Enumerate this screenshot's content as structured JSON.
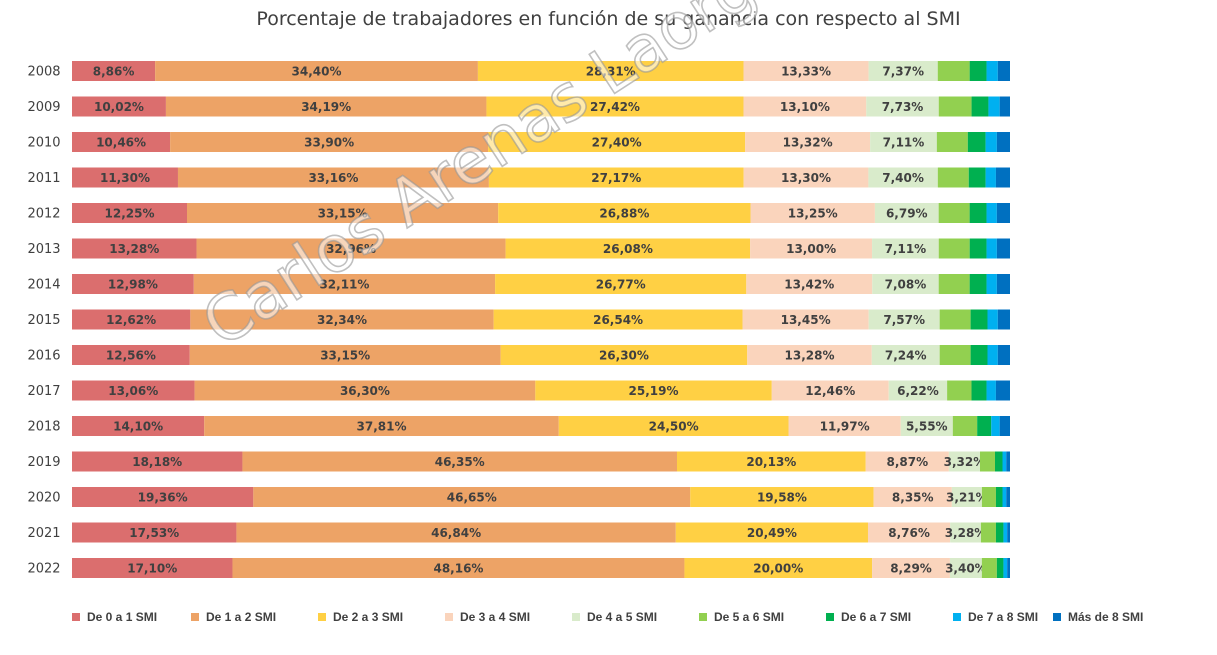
{
  "chart_data": {
    "type": "bar",
    "orientation": "horizontal",
    "stacked": "100%",
    "title": "Porcentaje de trabajadores en función de su ganancia con respecto al SMI",
    "categories": [
      "2008",
      "2009",
      "2010",
      "2011",
      "2012",
      "2013",
      "2014",
      "2015",
      "2016",
      "2017",
      "2018",
      "2019",
      "2020",
      "2021",
      "2022"
    ],
    "series": [
      {
        "name": "De 0 a 1 SMI",
        "color": "#DB6E6E",
        "values": [
          8.86,
          10.02,
          10.46,
          11.3,
          12.25,
          13.28,
          12.98,
          12.62,
          12.56,
          13.06,
          14.1,
          18.18,
          19.36,
          17.53,
          17.1
        ],
        "labels": [
          "8,86%",
          "10,02%",
          "10,46%",
          "11,30%",
          "12,25%",
          "13,28%",
          "12,98%",
          "12,62%",
          "12,56%",
          "13,06%",
          "14,10%",
          "18,18%",
          "19,36%",
          "17,53%",
          "17,10%"
        ]
      },
      {
        "name": "De 1 a 2 SMI",
        "color": "#EDA366",
        "values": [
          34.4,
          34.19,
          33.9,
          33.16,
          33.15,
          32.96,
          32.11,
          32.34,
          33.15,
          36.3,
          37.81,
          46.35,
          46.65,
          46.84,
          48.16
        ],
        "labels": [
          "34,40%",
          "34,19%",
          "33,90%",
          "33,16%",
          "33,15%",
          "32,96%",
          "32,11%",
          "32,34%",
          "33,15%",
          "36,30%",
          "37,81%",
          "46,35%",
          "46,65%",
          "46,84%",
          "48,16%"
        ]
      },
      {
        "name": "De 2 a 3 SMI",
        "color": "#FFD044",
        "values": [
          28.31,
          27.42,
          27.4,
          27.17,
          26.88,
          26.08,
          26.77,
          26.54,
          26.3,
          25.19,
          24.5,
          20.13,
          19.58,
          20.49,
          20.0
        ],
        "labels": [
          "28,31%",
          "27,42%",
          "27,40%",
          "27,17%",
          "26,88%",
          "26,08%",
          "26,77%",
          "26,54%",
          "26,30%",
          "25,19%",
          "24,50%",
          "20,13%",
          "19,58%",
          "20,49%",
          "20,00%"
        ]
      },
      {
        "name": "De 3 a 4 SMI",
        "color": "#FAD4BC",
        "values": [
          13.33,
          13.1,
          13.32,
          13.3,
          13.25,
          13.0,
          13.42,
          13.45,
          13.28,
          12.46,
          11.97,
          8.87,
          8.35,
          8.76,
          8.29
        ],
        "labels": [
          "13,33%",
          "13,10%",
          "13,32%",
          "13,30%",
          "13,25%",
          "13,00%",
          "13,42%",
          "13,45%",
          "13,28%",
          "12,46%",
          "11,97%",
          "8,87%",
          "8,35%",
          "8,76%",
          "8,29%"
        ]
      },
      {
        "name": "De 4 a 5 SMI",
        "color": "#D9EBCB",
        "values": [
          7.37,
          7.73,
          7.11,
          7.4,
          6.79,
          7.11,
          7.08,
          7.57,
          7.24,
          6.22,
          5.55,
          3.32,
          3.21,
          3.28,
          3.4
        ],
        "labels": [
          "7,37%",
          "7,73%",
          "7,11%",
          "7,40%",
          "6,79%",
          "7,11%",
          "7,08%",
          "7,57%",
          "7,24%",
          "6,22%",
          "5,55%",
          "3,32%",
          "3,21%",
          "3,28%",
          "3,40%"
        ]
      },
      {
        "name": "De 5 a 6 SMI",
        "color": "#92D050",
        "values": [
          3.4,
          3.5,
          3.3,
          3.3,
          3.3,
          3.3,
          3.3,
          3.3,
          3.3,
          2.6,
          2.6,
          1.6,
          1.5,
          1.6,
          1.6
        ]
      },
      {
        "name": "De 6 a 7 SMI",
        "color": "#00B050",
        "values": [
          1.8,
          1.8,
          1.9,
          1.8,
          1.8,
          1.8,
          1.8,
          1.8,
          1.8,
          1.6,
          1.5,
          0.8,
          0.7,
          0.8,
          0.7
        ]
      },
      {
        "name": "De 7 a 8 SMI",
        "color": "#00B0F0",
        "values": [
          1.2,
          1.2,
          1.2,
          1.1,
          1.1,
          1.1,
          1.1,
          1.1,
          1.1,
          1.0,
          0.9,
          0.4,
          0.4,
          0.4,
          0.4
        ]
      },
      {
        "name": "Más de 8 SMI",
        "color": "#0070C0",
        "values": [
          1.3,
          1.1,
          1.4,
          1.5,
          1.4,
          1.4,
          1.4,
          1.3,
          1.3,
          1.5,
          1.1,
          0.4,
          0.4,
          0.3,
          0.3
        ]
      }
    ],
    "xlim": [
      0,
      100
    ],
    "grid": false,
    "legend": "bottom"
  },
  "watermark": "Carlos Arenas Laorga"
}
